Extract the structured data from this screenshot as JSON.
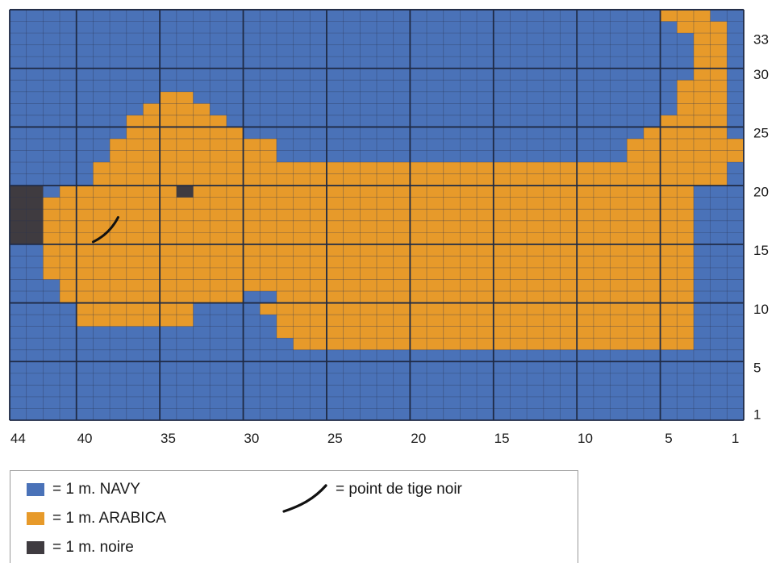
{
  "chart_data": {
    "type": "heatmap",
    "colors": {
      "navy": "#4a72b8",
      "arabica": "#e79a2a",
      "noire": "#3f3b40",
      "grid_line": "#1f2a44"
    },
    "x_ticks": [
      "44",
      "40",
      "35",
      "30",
      "25",
      "20",
      "15",
      "10",
      "5",
      "1"
    ],
    "y_ticks": [
      "33",
      "30",
      "25",
      "20",
      "15",
      "10",
      "5",
      "1"
    ],
    "rows_top_to_bottom": [
      "NNNNNNNNNNNNNNNNNNNNNNNNNNNNNNNNNNNNNNNAAANN",
      "NNNNNNNNNNNNNNNNNNNNNNNNNNNNNNNNNNNNNNNNAAAN",
      "NNNNNNNNNNNNNNNNNNNNNNNNNNNNNNNNNNNNNNNNNAAN",
      "NNNNNNNNNNNNNNNNNNNNNNNNNNNNNNNNNNNNNNNNNAAN",
      "NNNNNNNNNNNNNNNNNNNNNNNNNNNNNNNNNNNNNNNNNAAN",
      "NNNNNNNNNNNNNNNNNNNNNNNNNNNNNNNNNNNNNNNNNAAN",
      "NNNNNNNNNNNNNNNNNNNNNNNNNNNNNNNNNNNNNNNNAAAN",
      "NNNNNNNNNAANNNNNNNNNNNNNNNNNNNNNNNNNNNNNAAAN",
      "NNNNNNNNAAAANNNNNNNNNNNNNNNNNNNNNNNNNNNNAAAN",
      "NNNNNNNAAAAAANNNNNNNNNNNNNNNNNNNNNNNNNNAAAAN",
      "NNNNNNNAAAAAAANNNNNNNNNNNNNNNNNNNNNNNNAAAAAN",
      "NNNNNNAAAAAAAAAANNNNNNNNNNNNNNNNNNNNNAAAAAAA",
      "NNNNNNAAAAAAAAAANNNNNNNNNNNNNNNNNNNNNAAAAAAA",
      "NNNNNAAAAAAAAAAAAAAAAAAAAAAAAAAAAAAAAAAAAAAN",
      "NNNNNAAAAAAAAAAAAAAAAAAAAAAAAAAAAAAAAAAAAAAN",
      "DDNAAAAAAADAAAAAAAAAAAAAAAAAAAAAAAAAAAAAANNN",
      "DDAAAAAAAAAAAAAAAAAAAAAAAAAAAAAAAAAAAAAAANNN",
      "DDAAAAAAAAAAAAAAAAAAAAAAAAAAAAAAAAAAAAAAANNN",
      "DDAAAAAAAAAAAAAAAAAAAAAAAAAAAAAAAAAAAAAAANNN",
      "DDAAAAAAAAAAAAAAAAAAAAAAAAAAAAAAAAAAAAAAANNN",
      "NNAAAAAAAAAAAAAAAAAAAAAAAAAAAAAAAAAAAAAAANNN",
      "NNAAAAAAAAAAAAAAAAAAAAAAAAAAAAAAAAAAAAAAANNN",
      "NNAAAAAAAAAAAAAAAAAAAAAAAAAAAAAAAAAAAAAAANNN",
      "NNNAAAAAAAAAAAAAAAAAAAAAAAAAAAAAAAAAAAAAANNN",
      "NNNAAAAAAAAAAANNAAAAAAAAAAAAAAAAAAAAAAAAANNN",
      "NNNNAAAAAAANNNNAAAAAAAAAAAAAAAAAAAAAAAAAANNN",
      "NNNNAAAAAAANNNNNAAAAAAAAAAAAAAAAAAAAAAAAANNN",
      "NNNNNNNNNNNNNNNNAAAAAAAAAAAAAAAAAAAAAAAAANNN",
      "NNNNNNNNNNNNNNNNNAAAAAAAAAAAAAAAAAAAAAAAANNN",
      "NNNNNNNNNNNNNNNNNNNNNNNNNNNNNNNNNNNNNNNNNNNN",
      "NNNNNNNNNNNNNNNNNNNNNNNNNNNNNNNNNNNNNNNNNNNN",
      "NNNNNNNNNNNNNNNNNNNNNNNNNNNNNNNNNNNNNNNNNNNN",
      "NNNNNNNNNNNNNNNNNNNNNNNNNNNNNNNNNNNNNNNNNNNN",
      "NNNNNNNNNNNNNNNNNNNNNNNNNNNNNNNNNNNNNNNNNNNN",
      "NNNNNNNNNNNNNNNNNNNNNNNNNNNNNNNNNNNNNNNNNNNN"
    ],
    "stem_stitch_mouth": [
      [
        39.5,
        15.7
      ],
      [
        38.5,
        16.4
      ],
      [
        38,
        17.8
      ]
    ]
  },
  "legend": {
    "items": [
      {
        "color": "#4a72b8",
        "label": "= 1 m. NAVY"
      },
      {
        "color": "#e79a2a",
        "label": "= 1 m. ARABICA"
      },
      {
        "color": "#3f3b40",
        "label": "= 1 m. noire"
      }
    ],
    "stitch_label": "= point de tige noir"
  }
}
